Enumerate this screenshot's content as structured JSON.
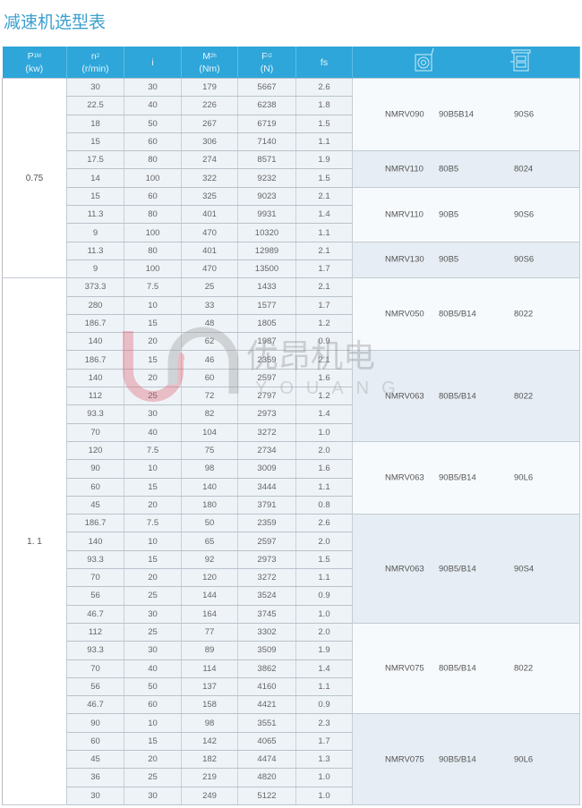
{
  "title": "减速机选型表",
  "header": {
    "columns": [
      {
        "main": "P",
        "sub": "1M",
        "unit": "(kw)"
      },
      {
        "main": "n",
        "sub": "2",
        "unit": "(r/min)"
      },
      {
        "main": "i",
        "sub": "",
        "unit": ""
      },
      {
        "main": "M",
        "sub": "2h",
        "unit": "(Nm)"
      },
      {
        "main": "F",
        "sub": "r2",
        "unit": "(N)"
      },
      {
        "main": "fs",
        "sub": "",
        "unit": ""
      }
    ],
    "icons": [
      "worm-gearbox-icon",
      "motor-icon"
    ]
  },
  "colors": {
    "header": "#2ea6d9",
    "title": "#3a9fd0",
    "cell": "#eef3f8",
    "group_alt": "#e6edf4"
  },
  "logo": {
    "cn": "优昂机电",
    "en": "YOUANG"
  },
  "sections": [
    {
      "power": "0.75",
      "groups": [
        {
          "model": "NMRV090",
          "flange": "90B5B14",
          "motor": "90S6",
          "rows": [
            [
              "30",
              "30",
              "179",
              "5667",
              "2.6"
            ],
            [
              "22.5",
              "40",
              "226",
              "6238",
              "1.8"
            ],
            [
              "18",
              "50",
              "267",
              "6719",
              "1.5"
            ],
            [
              "15",
              "60",
              "306",
              "7140",
              "1.1"
            ]
          ]
        },
        {
          "model": "NMRV110",
          "flange": "80B5",
          "motor": "8024",
          "rows": [
            [
              "17.5",
              "80",
              "274",
              "8571",
              "1.9"
            ],
            [
              "14",
              "100",
              "322",
              "9232",
              "1.5"
            ]
          ]
        },
        {
          "model": "NMRV110",
          "flange": "90B5",
          "motor": "90S6",
          "rows": [
            [
              "15",
              "60",
              "325",
              "9023",
              "2.1"
            ],
            [
              "11.3",
              "80",
              "401",
              "9931",
              "1.4"
            ],
            [
              "9",
              "100",
              "470",
              "10320",
              "1.1"
            ]
          ]
        },
        {
          "model": "NMRV130",
          "flange": "90B5",
          "motor": "90S6",
          "rows": [
            [
              "11.3",
              "80",
              "401",
              "12989",
              "2.1"
            ],
            [
              "9",
              "100",
              "470",
              "13500",
              "1.7"
            ]
          ]
        }
      ]
    },
    {
      "power": "1. 1",
      "groups": [
        {
          "model": "NMRV050",
          "flange": "80B5/B14",
          "motor": "8022",
          "rows": [
            [
              "373.3",
              "7.5",
              "25",
              "1433",
              "2.1"
            ],
            [
              "280",
              "10",
              "33",
              "1577",
              "1.7"
            ],
            [
              "186.7",
              "15",
              "48",
              "1805",
              "1.2"
            ],
            [
              "140",
              "20",
              "62",
              "1987",
              "0.9"
            ]
          ]
        },
        {
          "model": "NMRV063",
          "flange": "80B5/B14",
          "motor": "8022",
          "rows": [
            [
              "186.7",
              "15",
              "46",
              "2359",
              "2.1"
            ],
            [
              "140",
              "20",
              "60",
              "2597",
              "1.6"
            ],
            [
              "112",
              "25",
              "72",
              "2797",
              "1.2"
            ],
            [
              "93.3",
              "30",
              "82",
              "2973",
              "1.4"
            ],
            [
              "70",
              "40",
              "104",
              "3272",
              "1.0"
            ]
          ]
        },
        {
          "model": "NMRV063",
          "flange": "90B5/B14",
          "motor": "90L6",
          "rows": [
            [
              "120",
              "7.5",
              "75",
              "2734",
              "2.0"
            ],
            [
              "90",
              "10",
              "98",
              "3009",
              "1.6"
            ],
            [
              "60",
              "15",
              "140",
              "3444",
              "1.1"
            ],
            [
              "45",
              "20",
              "180",
              "3791",
              "0.8"
            ]
          ]
        },
        {
          "model": "NMRV063",
          "flange": "90B5/B14",
          "motor": "90S4",
          "rows": [
            [
              "186.7",
              "7.5",
              "50",
              "2359",
              "2.6"
            ],
            [
              "140",
              "10",
              "65",
              "2597",
              "2.0"
            ],
            [
              "93.3",
              "15",
              "92",
              "2973",
              "1.5"
            ],
            [
              "70",
              "20",
              "120",
              "3272",
              "1.1"
            ],
            [
              "56",
              "25",
              "144",
              "3524",
              "0.9"
            ],
            [
              "46.7",
              "30",
              "164",
              "3745",
              "1.0"
            ]
          ]
        },
        {
          "model": "NMRV075",
          "flange": "80B5/B14",
          "motor": "8022",
          "rows": [
            [
              "112",
              "25",
              "77",
              "3302",
              "2.0"
            ],
            [
              "93.3",
              "30",
              "89",
              "3509",
              "1.9"
            ],
            [
              "70",
              "40",
              "114",
              "3862",
              "1.4"
            ],
            [
              "56",
              "50",
              "137",
              "4160",
              "1.1"
            ],
            [
              "46.7",
              "60",
              "158",
              "4421",
              "0.9"
            ]
          ]
        },
        {
          "model": "NMRV075",
          "flange": "90B5/B14",
          "motor": "90L6",
          "rows": [
            [
              "90",
              "10",
              "98",
              "3551",
              "2.3"
            ],
            [
              "60",
              "15",
              "142",
              "4065",
              "1.7"
            ],
            [
              "45",
              "20",
              "182",
              "4474",
              "1.3"
            ],
            [
              "36",
              "25",
              "219",
              "4820",
              "1.0"
            ],
            [
              "30",
              "30",
              "249",
              "5122",
              "1.0"
            ]
          ]
        }
      ]
    }
  ]
}
